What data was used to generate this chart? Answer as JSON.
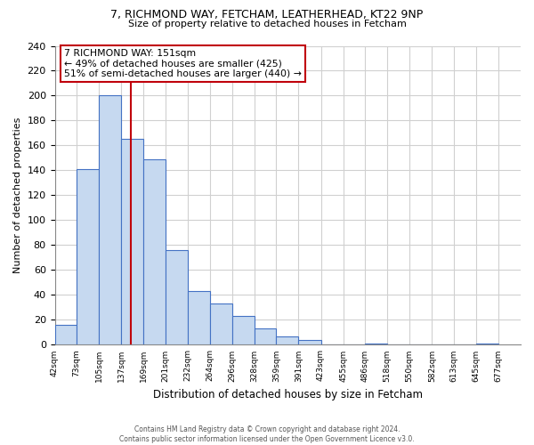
{
  "title1": "7, RICHMOND WAY, FETCHAM, LEATHERHEAD, KT22 9NP",
  "title2": "Size of property relative to detached houses in Fetcham",
  "xlabel": "Distribution of detached houses by size in Fetcham",
  "ylabel": "Number of detached properties",
  "bar_left_edges": [
    42,
    73,
    105,
    137,
    169,
    201,
    232,
    264,
    296,
    328,
    359,
    391,
    423,
    455,
    486,
    518,
    550,
    582,
    613,
    645
  ],
  "bar_heights": [
    16,
    141,
    200,
    165,
    149,
    76,
    43,
    33,
    23,
    13,
    7,
    4,
    0,
    0,
    1,
    0,
    0,
    0,
    0,
    1
  ],
  "bar_widths": [
    31,
    32,
    32,
    32,
    32,
    31,
    32,
    32,
    32,
    31,
    32,
    32,
    32,
    31,
    32,
    32,
    32,
    31,
    32,
    32
  ],
  "tick_labels": [
    "42sqm",
    "73sqm",
    "105sqm",
    "137sqm",
    "169sqm",
    "201sqm",
    "232sqm",
    "264sqm",
    "296sqm",
    "328sqm",
    "359sqm",
    "391sqm",
    "423sqm",
    "455sqm",
    "486sqm",
    "518sqm",
    "550sqm",
    "582sqm",
    "613sqm",
    "645sqm",
    "677sqm"
  ],
  "bar_color": "#c6d9f0",
  "bar_edge_color": "#4472c4",
  "vline_x": 151,
  "vline_color": "#c0000b",
  "ylim": [
    0,
    240
  ],
  "yticks": [
    0,
    20,
    40,
    60,
    80,
    100,
    120,
    140,
    160,
    180,
    200,
    220,
    240
  ],
  "annotation_title": "7 RICHMOND WAY: 151sqm",
  "annotation_line1": "← 49% of detached houses are smaller (425)",
  "annotation_line2": "51% of semi-detached houses are larger (440) →",
  "footer_line1": "Contains HM Land Registry data © Crown copyright and database right 2024.",
  "footer_line2": "Contains public sector information licensed under the Open Government Licence v3.0.",
  "background_color": "#ffffff",
  "grid_color": "#d0d0d0"
}
